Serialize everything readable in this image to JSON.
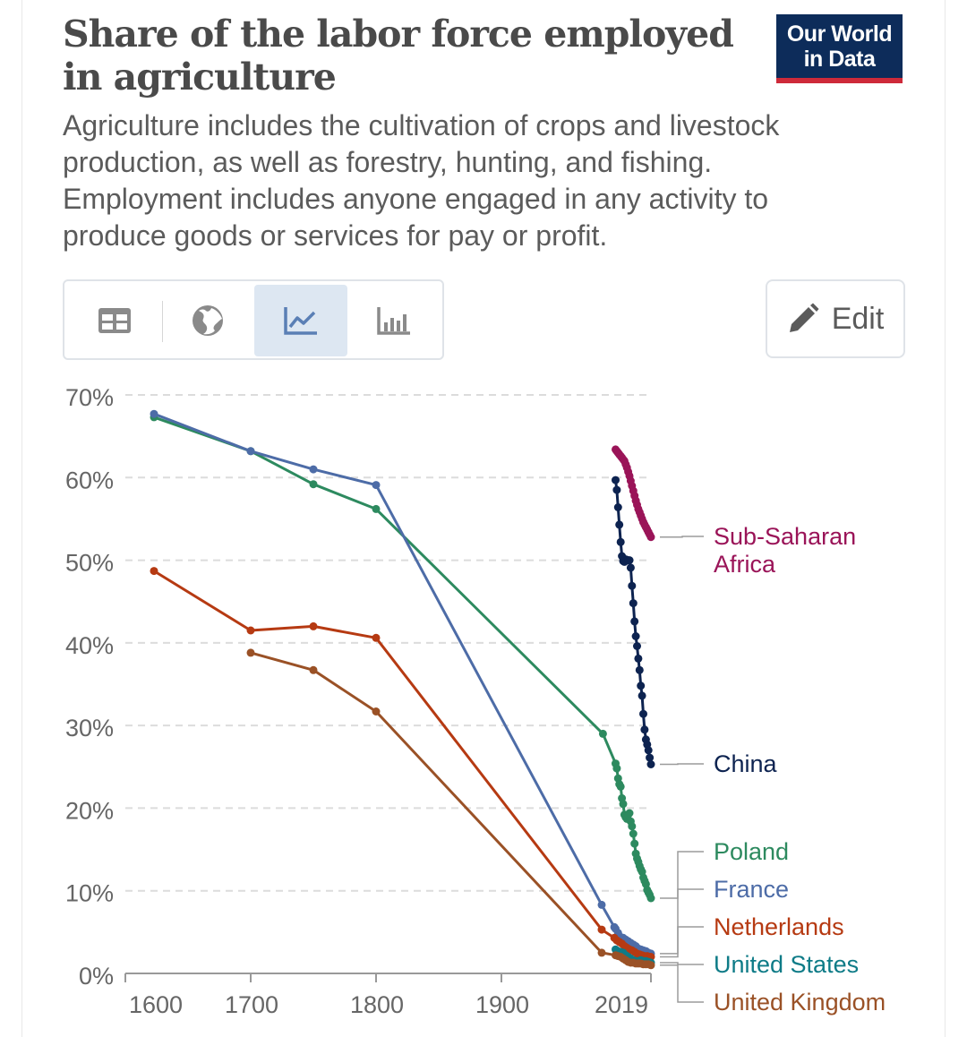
{
  "header": {
    "title": "Share of the labor force employed in agriculture",
    "subtitle": "Agriculture includes the cultivation of crops and livestock production, as well as forestry, hunting, and fishing. Employment includes anyone engaged in any activity to produce goods or services for pay or profit.",
    "logo_line1": "Our World",
    "logo_line2": "in Data",
    "logo_color": "#0d2c5a",
    "logo_accent": "#ce2a3a"
  },
  "toolbar": {
    "tabs": [
      {
        "icon": "table-icon",
        "active": false
      },
      {
        "icon": "globe-icon",
        "active": false
      },
      {
        "icon": "line-chart-icon",
        "active": true
      },
      {
        "icon": "bar-chart-icon",
        "active": false
      }
    ],
    "edit_label": "Edit",
    "edit_icon": "pencil-icon"
  },
  "chart_data": {
    "type": "line",
    "title": "",
    "xlabel": "",
    "ylabel": "",
    "x_ticks": [
      1600,
      1700,
      1800,
      1900,
      2019
    ],
    "xlim": [
      1575,
      2020
    ],
    "y_ticks": [
      0,
      10,
      20,
      30,
      40,
      50,
      60,
      70
    ],
    "y_tick_labels": [
      "0%",
      "10%",
      "20%",
      "30%",
      "40%",
      "50%",
      "60%",
      "70%"
    ],
    "ylim": [
      0,
      70
    ],
    "grid": "horizontal-dashed",
    "legend": "right, end-of-line labels",
    "series": [
      {
        "name": "Sub-Saharan Africa",
        "color": "#9a1458",
        "label_lines": [
          "Sub-Saharan",
          "Africa"
        ],
        "points": [
          [
            1991,
            63.4
          ],
          [
            1992,
            63.2
          ],
          [
            1993,
            63.0
          ],
          [
            1994,
            62.8
          ],
          [
            1995,
            62.6
          ],
          [
            1996,
            62.4
          ],
          [
            1997,
            62.2
          ],
          [
            1998,
            62.0
          ],
          [
            1999,
            61.6
          ],
          [
            2000,
            61.2
          ],
          [
            2001,
            60.7
          ],
          [
            2002,
            60.2
          ],
          [
            2003,
            59.6
          ],
          [
            2004,
            59.0
          ],
          [
            2005,
            58.4
          ],
          [
            2006,
            57.8
          ],
          [
            2007,
            57.2
          ],
          [
            2008,
            56.7
          ],
          [
            2009,
            56.2
          ],
          [
            2010,
            55.8
          ],
          [
            2011,
            55.4
          ],
          [
            2012,
            55.0
          ],
          [
            2013,
            54.6
          ],
          [
            2014,
            54.3
          ],
          [
            2015,
            54.0
          ],
          [
            2016,
            53.7
          ],
          [
            2017,
            53.4
          ],
          [
            2018,
            53.1
          ],
          [
            2019,
            52.8
          ]
        ]
      },
      {
        "name": "China",
        "color": "#0d2350",
        "label_lines": [
          "China"
        ],
        "points": [
          [
            1991,
            59.7
          ],
          [
            1992,
            58.5
          ],
          [
            1993,
            56.4
          ],
          [
            1994,
            54.3
          ],
          [
            1995,
            52.2
          ],
          [
            1996,
            50.5
          ],
          [
            1997,
            49.9
          ],
          [
            1998,
            49.8
          ],
          [
            1999,
            50.1
          ],
          [
            2000,
            50.0
          ],
          [
            2001,
            50.0
          ],
          [
            2002,
            50.0
          ],
          [
            2003,
            49.1
          ],
          [
            2004,
            46.9
          ],
          [
            2005,
            44.8
          ],
          [
            2006,
            42.6
          ],
          [
            2007,
            40.8
          ],
          [
            2008,
            39.6
          ],
          [
            2009,
            38.1
          ],
          [
            2010,
            36.7
          ],
          [
            2011,
            34.8
          ],
          [
            2012,
            33.6
          ],
          [
            2013,
            31.4
          ],
          [
            2014,
            29.5
          ],
          [
            2015,
            28.3
          ],
          [
            2016,
            27.7
          ],
          [
            2017,
            27.0
          ],
          [
            2018,
            26.1
          ],
          [
            2019,
            25.3
          ]
        ]
      },
      {
        "name": "Poland",
        "color": "#2d8a5f",
        "label_lines": [
          "Poland"
        ],
        "points": [
          [
            1600,
            67.3
          ],
          [
            1700,
            63.2
          ],
          [
            1750,
            59.2
          ],
          [
            1800,
            56.2
          ],
          [
            1981,
            29.0
          ],
          [
            1991,
            25.4
          ],
          [
            1992,
            24.8
          ],
          [
            1993,
            23.6
          ],
          [
            1994,
            22.9
          ],
          [
            1995,
            22.6
          ],
          [
            1996,
            21.2
          ],
          [
            1997,
            20.5
          ],
          [
            1998,
            19.2
          ],
          [
            1999,
            18.9
          ],
          [
            2000,
            18.7
          ],
          [
            2001,
            19.2
          ],
          [
            2002,
            19.4
          ],
          [
            2003,
            18.4
          ],
          [
            2004,
            17.8
          ],
          [
            2005,
            16.9
          ],
          [
            2006,
            15.7
          ],
          [
            2007,
            14.5
          ],
          [
            2008,
            13.9
          ],
          [
            2009,
            13.5
          ],
          [
            2010,
            13.0
          ],
          [
            2011,
            12.6
          ],
          [
            2012,
            12.3
          ],
          [
            2013,
            11.6
          ],
          [
            2014,
            11.2
          ],
          [
            2015,
            10.8
          ],
          [
            2016,
            10.1
          ],
          [
            2017,
            9.8
          ],
          [
            2018,
            9.5
          ],
          [
            2019,
            9.1
          ]
        ]
      },
      {
        "name": "France",
        "color": "#4d6ca7",
        "label_lines": [
          "France"
        ],
        "points": [
          [
            1600,
            67.7
          ],
          [
            1700,
            63.2
          ],
          [
            1750,
            61.0
          ],
          [
            1800,
            59.1
          ],
          [
            1980,
            8.3
          ],
          [
            1990,
            5.6
          ],
          [
            1991,
            5.4
          ],
          [
            1993,
            4.9
          ],
          [
            1995,
            4.4
          ],
          [
            1997,
            4.3
          ],
          [
            1999,
            4.1
          ],
          [
            2001,
            3.9
          ],
          [
            2003,
            3.7
          ],
          [
            2005,
            3.5
          ],
          [
            2007,
            3.3
          ],
          [
            2009,
            3.0
          ],
          [
            2011,
            2.9
          ],
          [
            2013,
            2.8
          ],
          [
            2015,
            2.7
          ],
          [
            2017,
            2.5
          ],
          [
            2019,
            2.4
          ]
        ]
      },
      {
        "name": "Netherlands",
        "color": "#b63a12",
        "label_lines": [
          "Netherlands"
        ],
        "points": [
          [
            1600,
            48.7
          ],
          [
            1700,
            41.5
          ],
          [
            1750,
            42.0
          ],
          [
            1800,
            40.6
          ],
          [
            1980,
            5.3
          ],
          [
            1990,
            4.3
          ],
          [
            1992,
            4.0
          ],
          [
            1994,
            3.8
          ],
          [
            1996,
            3.6
          ],
          [
            1998,
            3.3
          ],
          [
            2000,
            3.1
          ],
          [
            2002,
            2.9
          ],
          [
            2004,
            2.8
          ],
          [
            2006,
            2.6
          ],
          [
            2008,
            2.4
          ],
          [
            2010,
            2.3
          ],
          [
            2012,
            2.2
          ],
          [
            2014,
            2.1
          ],
          [
            2016,
            2.1
          ],
          [
            2018,
            2.0
          ],
          [
            2019,
            2.0
          ]
        ]
      },
      {
        "name": "United States",
        "color": "#0e7b87",
        "label_lines": [
          "United States"
        ],
        "points": [
          [
            1991,
            2.9
          ],
          [
            1993,
            2.7
          ],
          [
            1995,
            2.6
          ],
          [
            1997,
            2.5
          ],
          [
            1999,
            2.2
          ],
          [
            2001,
            2.0
          ],
          [
            2003,
            1.8
          ],
          [
            2005,
            1.6
          ],
          [
            2007,
            1.5
          ],
          [
            2009,
            1.5
          ],
          [
            2011,
            1.6
          ],
          [
            2013,
            1.5
          ],
          [
            2015,
            1.5
          ],
          [
            2017,
            1.4
          ],
          [
            2019,
            1.3
          ]
        ]
      },
      {
        "name": "United Kingdom",
        "color": "#9a5126",
        "label_lines": [
          "United Kingdom"
        ],
        "points": [
          [
            1700,
            38.8
          ],
          [
            1750,
            36.7
          ],
          [
            1800,
            31.7
          ],
          [
            1980,
            2.5
          ],
          [
            1991,
            2.2
          ],
          [
            1993,
            2.1
          ],
          [
            1995,
            2.0
          ],
          [
            1997,
            1.8
          ],
          [
            1999,
            1.6
          ],
          [
            2001,
            1.4
          ],
          [
            2003,
            1.3
          ],
          [
            2005,
            1.3
          ],
          [
            2007,
            1.2
          ],
          [
            2009,
            1.2
          ],
          [
            2011,
            1.2
          ],
          [
            2013,
            1.1
          ],
          [
            2015,
            1.1
          ],
          [
            2017,
            1.1
          ],
          [
            2019,
            1.0
          ]
        ]
      }
    ]
  }
}
